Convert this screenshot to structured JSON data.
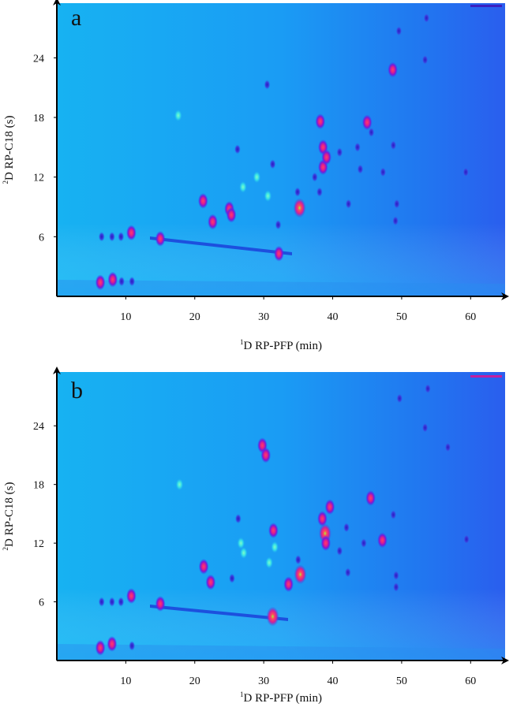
{
  "chart_data": [
    {
      "type": "heatmap",
      "panel_label": "a",
      "title": "",
      "xlabel_sup": "1",
      "xlabel": "D RP-PFP (min)",
      "ylabel_sup": "2",
      "ylabel": "D RP-C18 (s)",
      "x_ticks": [
        10,
        20,
        30,
        40,
        50,
        60
      ],
      "y_ticks": [
        6,
        12,
        18,
        24
      ],
      "xlim": [
        0,
        65
      ],
      "ylim": [
        0,
        29.5
      ],
      "spots": [
        {
          "x": 6.3,
          "y": 1.4,
          "i": 3
        },
        {
          "x": 8.1,
          "y": 1.7,
          "i": 3
        },
        {
          "x": 9.4,
          "y": 1.5,
          "i": 2
        },
        {
          "x": 10.9,
          "y": 1.5,
          "i": 2
        },
        {
          "x": 6.5,
          "y": 6.0,
          "i": 2
        },
        {
          "x": 8.0,
          "y": 6.0,
          "i": 2
        },
        {
          "x": 9.3,
          "y": 6.0,
          "i": 2
        },
        {
          "x": 10.8,
          "y": 6.4,
          "i": 3
        },
        {
          "x": 15.0,
          "y": 5.8,
          "i": 3
        },
        {
          "x": 17.6,
          "y": 18.2,
          "i": 1
        },
        {
          "x": 21.2,
          "y": 9.6,
          "i": 3
        },
        {
          "x": 22.6,
          "y": 7.5,
          "i": 3
        },
        {
          "x": 25.0,
          "y": 8.8,
          "i": 3
        },
        {
          "x": 25.3,
          "y": 8.2,
          "i": 3
        },
        {
          "x": 26.2,
          "y": 14.8,
          "i": 2
        },
        {
          "x": 27.0,
          "y": 11.0,
          "i": 1
        },
        {
          "x": 29.0,
          "y": 12.0,
          "i": 1
        },
        {
          "x": 30.6,
          "y": 10.1,
          "i": 1
        },
        {
          "x": 30.5,
          "y": 21.3,
          "i": 2
        },
        {
          "x": 31.3,
          "y": 13.3,
          "i": 2
        },
        {
          "x": 32.1,
          "y": 7.2,
          "i": 2
        },
        {
          "x": 32.2,
          "y": 4.3,
          "i": 3
        },
        {
          "x": 35.2,
          "y": 8.9,
          "i": 4
        },
        {
          "x": 34.9,
          "y": 10.5,
          "i": 2
        },
        {
          "x": 38.2,
          "y": 17.6,
          "i": 3
        },
        {
          "x": 38.6,
          "y": 15.0,
          "i": 3
        },
        {
          "x": 38.6,
          "y": 13.0,
          "i": 3
        },
        {
          "x": 39.1,
          "y": 14.0,
          "i": 3
        },
        {
          "x": 38.1,
          "y": 10.5,
          "i": 2
        },
        {
          "x": 37.4,
          "y": 12.0,
          "i": 2
        },
        {
          "x": 41.0,
          "y": 14.5,
          "i": 2
        },
        {
          "x": 42.3,
          "y": 9.3,
          "i": 2
        },
        {
          "x": 43.6,
          "y": 15.0,
          "i": 2
        },
        {
          "x": 44.0,
          "y": 12.8,
          "i": 2
        },
        {
          "x": 45.0,
          "y": 17.5,
          "i": 3
        },
        {
          "x": 45.6,
          "y": 16.5,
          "i": 2
        },
        {
          "x": 47.3,
          "y": 12.5,
          "i": 2
        },
        {
          "x": 48.7,
          "y": 22.8,
          "i": 3
        },
        {
          "x": 49.3,
          "y": 9.3,
          "i": 2
        },
        {
          "x": 49.1,
          "y": 7.6,
          "i": 2
        },
        {
          "x": 48.8,
          "y": 15.2,
          "i": 2
        },
        {
          "x": 49.6,
          "y": 26.7,
          "i": 2
        },
        {
          "x": 53.4,
          "y": 23.8,
          "i": 2
        },
        {
          "x": 53.6,
          "y": 28.0,
          "i": 2
        },
        {
          "x": 59.3,
          "y": 12.5,
          "i": 2
        }
      ]
    },
    {
      "type": "heatmap",
      "panel_label": "b",
      "title": "",
      "xlabel_sup": "1",
      "xlabel": "D RP-PFP (min)",
      "ylabel_sup": "2",
      "ylabel": "D RP-C18 (s)",
      "x_ticks": [
        10,
        20,
        30,
        40,
        50,
        60
      ],
      "y_ticks": [
        6,
        12,
        18,
        24
      ],
      "xlim": [
        0,
        65
      ],
      "ylim": [
        0,
        29.5
      ],
      "spots": [
        {
          "x": 6.3,
          "y": 1.3,
          "i": 3
        },
        {
          "x": 8.0,
          "y": 1.7,
          "i": 3
        },
        {
          "x": 10.9,
          "y": 1.5,
          "i": 2
        },
        {
          "x": 6.5,
          "y": 6.0,
          "i": 2
        },
        {
          "x": 8.0,
          "y": 6.0,
          "i": 2
        },
        {
          "x": 9.3,
          "y": 6.0,
          "i": 2
        },
        {
          "x": 10.8,
          "y": 6.6,
          "i": 3
        },
        {
          "x": 15.0,
          "y": 5.8,
          "i": 3
        },
        {
          "x": 17.8,
          "y": 18.0,
          "i": 1
        },
        {
          "x": 21.3,
          "y": 9.6,
          "i": 3
        },
        {
          "x": 22.3,
          "y": 8.0,
          "i": 3
        },
        {
          "x": 25.4,
          "y": 8.4,
          "i": 2
        },
        {
          "x": 26.3,
          "y": 14.5,
          "i": 2
        },
        {
          "x": 26.7,
          "y": 12.0,
          "i": 1
        },
        {
          "x": 27.1,
          "y": 11.0,
          "i": 1
        },
        {
          "x": 29.8,
          "y": 22.0,
          "i": 3
        },
        {
          "x": 30.3,
          "y": 21.0,
          "i": 3
        },
        {
          "x": 31.4,
          "y": 13.3,
          "i": 3
        },
        {
          "x": 30.8,
          "y": 10.0,
          "i": 1
        },
        {
          "x": 31.6,
          "y": 11.6,
          "i": 1
        },
        {
          "x": 31.3,
          "y": 4.5,
          "i": 4
        },
        {
          "x": 33.6,
          "y": 7.8,
          "i": 3
        },
        {
          "x": 35.3,
          "y": 8.8,
          "i": 4
        },
        {
          "x": 35.0,
          "y": 10.3,
          "i": 2
        },
        {
          "x": 38.9,
          "y": 13.0,
          "i": 4
        },
        {
          "x": 38.5,
          "y": 14.5,
          "i": 3
        },
        {
          "x": 39.6,
          "y": 15.7,
          "i": 3
        },
        {
          "x": 39.0,
          "y": 12.0,
          "i": 3
        },
        {
          "x": 41.0,
          "y": 11.2,
          "i": 2
        },
        {
          "x": 42.0,
          "y": 13.6,
          "i": 2
        },
        {
          "x": 42.2,
          "y": 9.0,
          "i": 2
        },
        {
          "x": 44.5,
          "y": 12.0,
          "i": 2
        },
        {
          "x": 45.5,
          "y": 16.6,
          "i": 3
        },
        {
          "x": 47.2,
          "y": 12.3,
          "i": 3
        },
        {
          "x": 48.8,
          "y": 14.9,
          "i": 2
        },
        {
          "x": 49.2,
          "y": 8.7,
          "i": 2
        },
        {
          "x": 49.2,
          "y": 7.5,
          "i": 2
        },
        {
          "x": 49.7,
          "y": 26.8,
          "i": 2
        },
        {
          "x": 53.4,
          "y": 23.8,
          "i": 2
        },
        {
          "x": 53.8,
          "y": 27.8,
          "i": 2
        },
        {
          "x": 56.7,
          "y": 21.8,
          "i": 2
        },
        {
          "x": 59.4,
          "y": 12.4,
          "i": 2
        }
      ]
    }
  ]
}
